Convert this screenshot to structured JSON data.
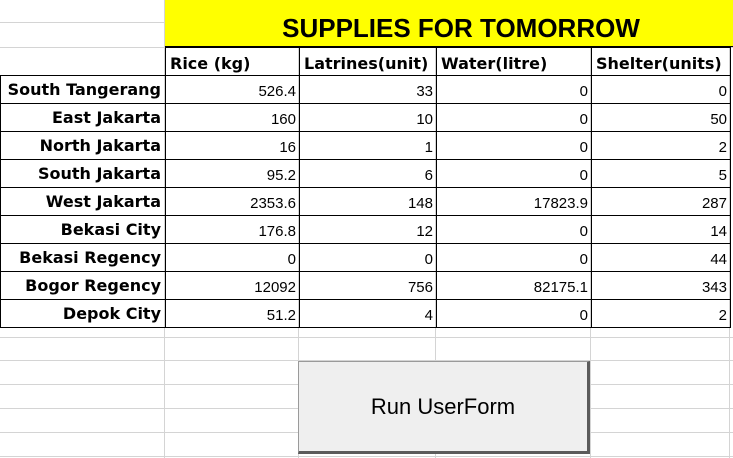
{
  "sheet": {
    "title": "SUPPLIES FOR TOMORROW",
    "title_band_color": "#ffff00",
    "columns": [
      "Rice (kg)",
      "Latrines(unit)",
      "Water(litre)",
      "Shelter(units)"
    ],
    "rows": [
      {
        "name": "South Tangerang",
        "values": [
          "526.4",
          "33",
          "0",
          "0"
        ]
      },
      {
        "name": "East Jakarta",
        "values": [
          "160",
          "10",
          "0",
          "50"
        ]
      },
      {
        "name": "North Jakarta",
        "values": [
          "16",
          "1",
          "0",
          "2"
        ]
      },
      {
        "name": "South Jakarta",
        "values": [
          "95.2",
          "6",
          "0",
          "5"
        ]
      },
      {
        "name": "West Jakarta",
        "values": [
          "2353.6",
          "148",
          "17823.9",
          "287"
        ]
      },
      {
        "name": "Bekasi City",
        "values": [
          "176.8",
          "12",
          "0",
          "14"
        ]
      },
      {
        "name": "Bekasi Regency",
        "values": [
          "0",
          "0",
          "0",
          "44"
        ]
      },
      {
        "name": "Bogor Regency",
        "values": [
          "12092",
          "756",
          "82175.1",
          "343"
        ]
      },
      {
        "name": "Depok City",
        "values": [
          "51.2",
          "4",
          "0",
          "2"
        ]
      }
    ]
  },
  "button": {
    "label": "Run UserForm"
  }
}
